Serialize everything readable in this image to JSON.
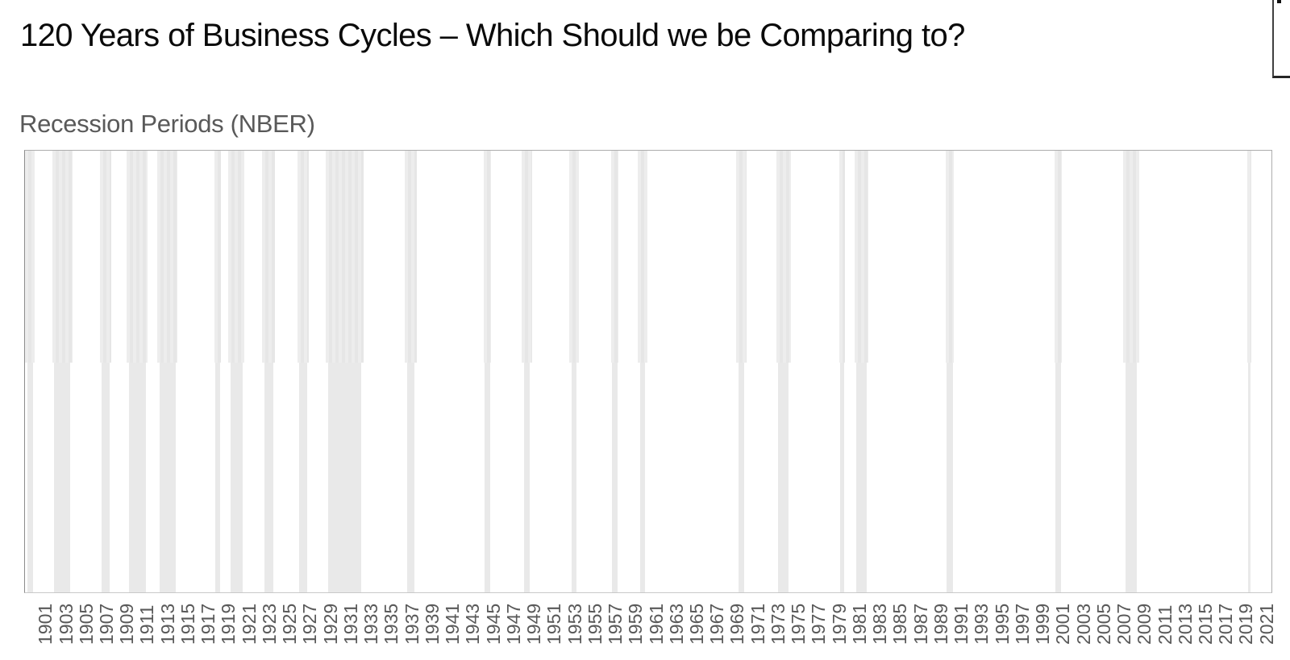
{
  "slide": {
    "title": "120 Years of Business Cycles – Which Should we be Comparing to?"
  },
  "chart_data": {
    "type": "bar",
    "subtype": "recession-indicator-timeline",
    "title": "Recession Periods (NBER)",
    "xlabel": "",
    "ylabel": "",
    "x_range": [
      1900,
      2022.5
    ],
    "grid": false,
    "legend": "none",
    "tick_labels": [
      "1901",
      "1903",
      "1905",
      "1907",
      "1909",
      "1911",
      "1913",
      "1915",
      "1917",
      "1919",
      "1921",
      "1923",
      "1925",
      "1927",
      "1929",
      "1931",
      "1933",
      "1935",
      "1937",
      "1939",
      "1941",
      "1943",
      "1945",
      "1947",
      "1949",
      "1951",
      "1953",
      "1955",
      "1957",
      "1959",
      "1961",
      "1963",
      "1965",
      "1967",
      "1969",
      "1971",
      "1973",
      "1975",
      "1977",
      "1979",
      "1981",
      "1983",
      "1985",
      "1987",
      "1989",
      "1991",
      "1993",
      "1995",
      "1997",
      "1999",
      "2001",
      "2003",
      "2005",
      "2007",
      "2009",
      "2011",
      "2013",
      "2015",
      "2017",
      "2019",
      "2021"
    ],
    "recessions": [
      {
        "period": "Jun 1899 – Dec 1900",
        "start": 1899.45,
        "end": 1900.95
      },
      {
        "period": "Sep 1902 – Aug 1904",
        "start": 1902.67,
        "end": 1904.67
      },
      {
        "period": "May 1907 – Jun 1908",
        "start": 1907.33,
        "end": 1908.5
      },
      {
        "period": "Jan 1910 – Jan 1912",
        "start": 1910.0,
        "end": 1912.08
      },
      {
        "period": "Jan 1913 – Dec 1914",
        "start": 1913.0,
        "end": 1915.0
      },
      {
        "period": "Aug 1918 – Mar 1919",
        "start": 1918.58,
        "end": 1919.25
      },
      {
        "period": "Jan 1920 – Jul 1921",
        "start": 1920.0,
        "end": 1921.58
      },
      {
        "period": "May 1923 – Jul 1924",
        "start": 1923.33,
        "end": 1924.58
      },
      {
        "period": "Oct 1926 – Nov 1927",
        "start": 1926.75,
        "end": 1927.92
      },
      {
        "period": "Aug 1929 – Mar 1933",
        "start": 1929.58,
        "end": 1933.25
      },
      {
        "period": "May 1937 – Jun 1938",
        "start": 1937.33,
        "end": 1938.5
      },
      {
        "period": "Feb 1945 – Oct 1945",
        "start": 1945.08,
        "end": 1945.83
      },
      {
        "period": "Nov 1948 – Oct 1949",
        "start": 1948.83,
        "end": 1949.83
      },
      {
        "period": "Jul 1953 – May 1954",
        "start": 1953.5,
        "end": 1954.42
      },
      {
        "period": "Aug 1957 – Apr 1958",
        "start": 1957.58,
        "end": 1958.33
      },
      {
        "period": "Apr 1960 – Feb 1961",
        "start": 1960.25,
        "end": 1961.17
      },
      {
        "period": "Dec 1969 – Nov 1970",
        "start": 1969.92,
        "end": 1970.92
      },
      {
        "period": "Nov 1973 – Mar 1975",
        "start": 1973.83,
        "end": 1975.25
      },
      {
        "period": "Jan 1980 – Jul 1980",
        "start": 1980.0,
        "end": 1980.58
      },
      {
        "period": "Jul 1981 – Nov 1982",
        "start": 1981.5,
        "end": 1982.92
      },
      {
        "period": "Jul 1990 – Mar 1991",
        "start": 1990.5,
        "end": 1991.25
      },
      {
        "period": "Mar 2001 – Nov 2001",
        "start": 2001.17,
        "end": 2001.92
      },
      {
        "period": "Dec 2007 – Jun 2009",
        "start": 2007.92,
        "end": 2009.5
      },
      {
        "period": "Feb 2020 – Apr 2020",
        "start": 2020.08,
        "end": 2020.33
      }
    ],
    "bar_color": "#e9e9e9"
  },
  "colors": {
    "background": "#ffffff",
    "title_text": "#0a0a0a",
    "chart_title_text": "#595959",
    "tick_label_text": "#595959",
    "plot_border": "#adadad",
    "recession_bar_fill": "#e9e9e9"
  }
}
